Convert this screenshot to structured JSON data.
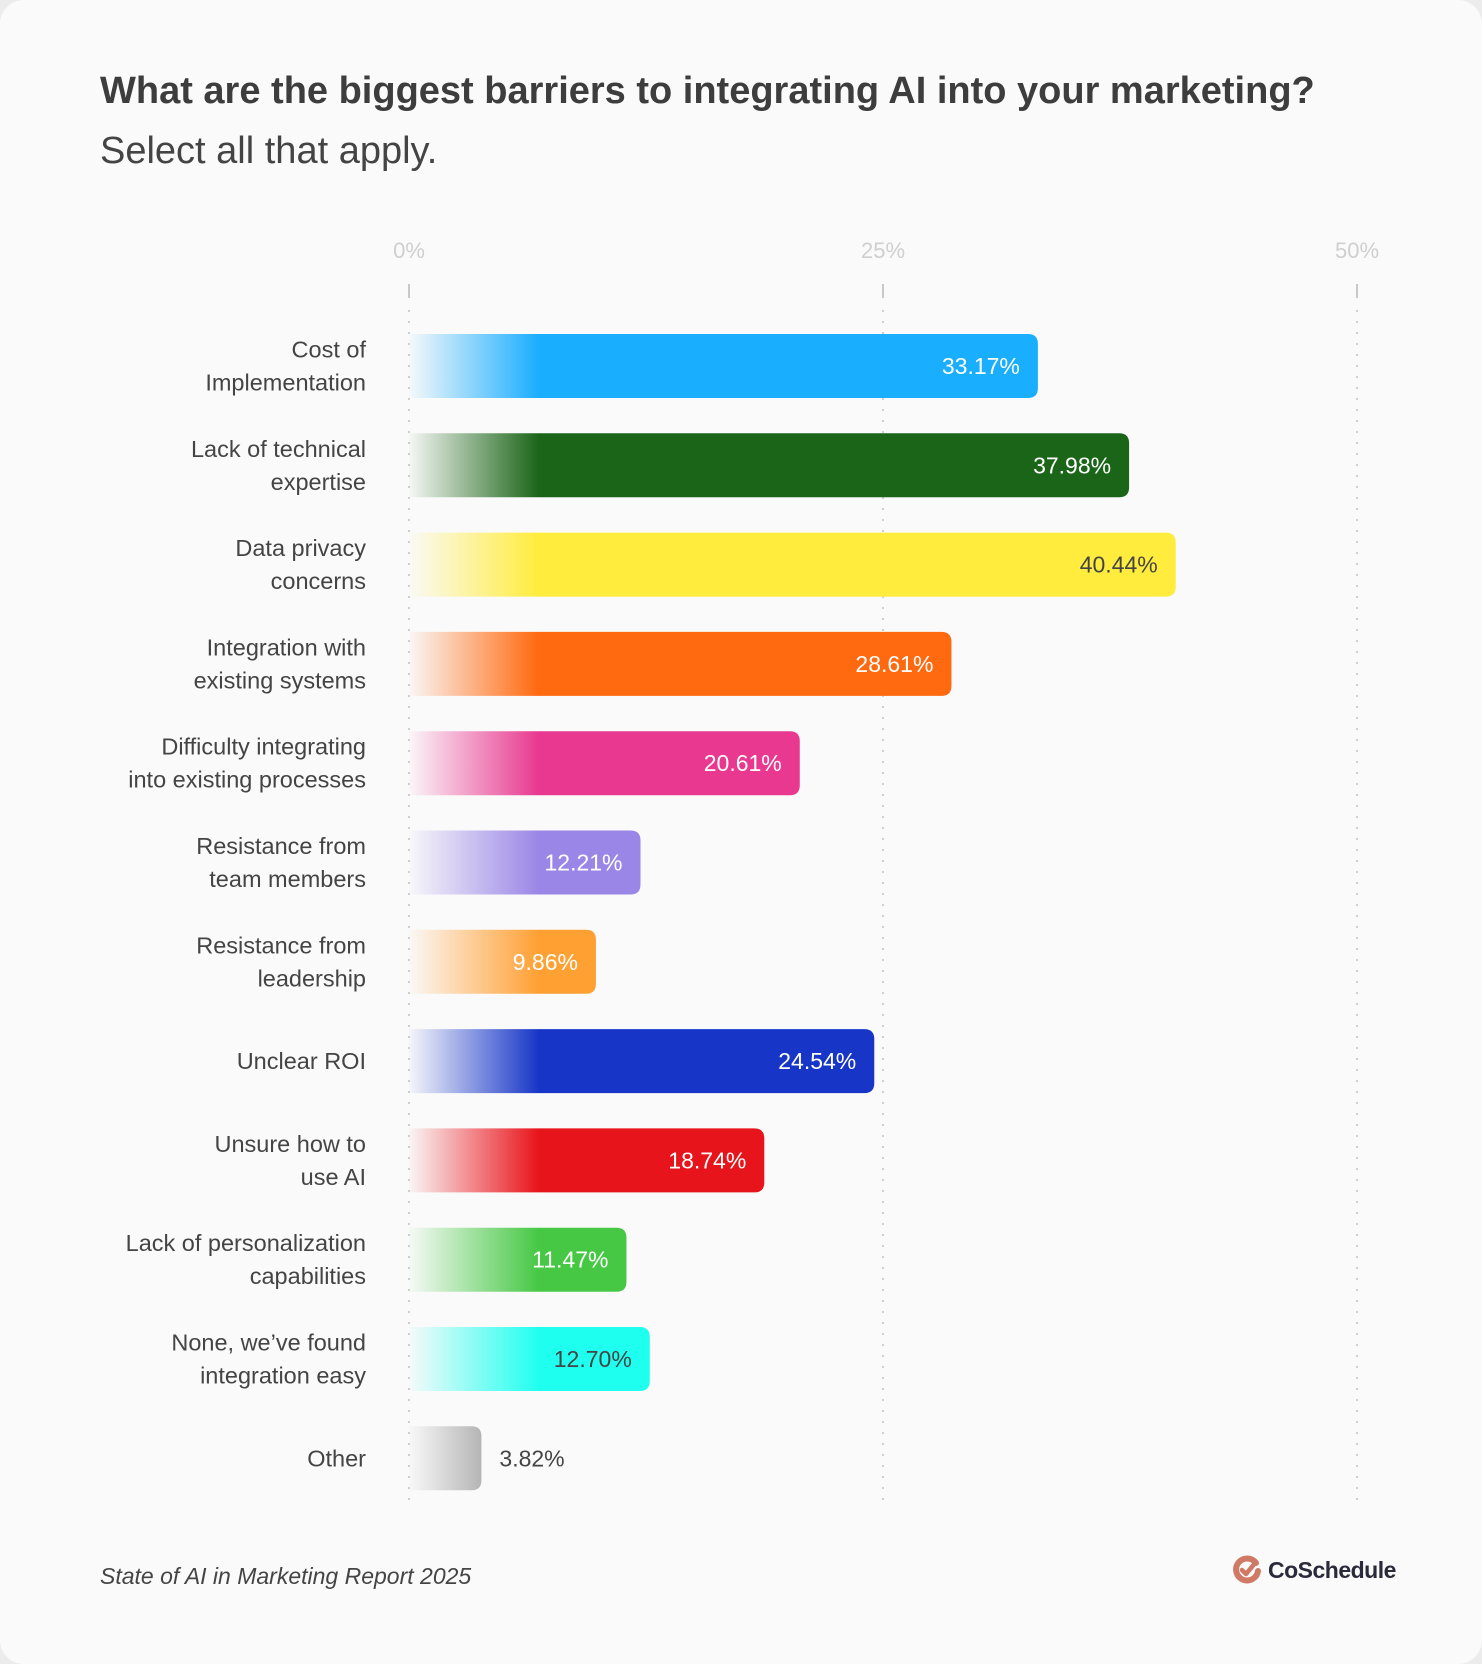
{
  "chart_data": {
    "type": "bar",
    "orientation": "horizontal",
    "title": "What are the biggest barriers to integrating AI into your marketing?",
    "subtitle": "Select all that apply.",
    "xlim": [
      0,
      50
    ],
    "x_ticks": [
      "0%",
      "25%",
      "50%"
    ],
    "x_tick_values": [
      0,
      25,
      50
    ],
    "grid": "vertical dotted",
    "categories": [
      [
        "Cost of",
        "Implementation"
      ],
      [
        "Lack of technical",
        "expertise"
      ],
      [
        "Data privacy",
        "concerns"
      ],
      [
        "Integration with",
        "existing systems"
      ],
      [
        "Difficulty integrating",
        "into existing processes"
      ],
      [
        "Resistance from",
        "team members"
      ],
      [
        "Resistance from",
        "leadership"
      ],
      [
        "Unclear ROI"
      ],
      [
        "Unsure how to",
        "use AI"
      ],
      [
        "Lack of personalization",
        "capabilities"
      ],
      [
        "None, we’ve found",
        "integration easy"
      ],
      [
        "Other"
      ]
    ],
    "values": [
      33.17,
      37.98,
      40.44,
      28.61,
      20.61,
      12.21,
      9.86,
      24.54,
      18.74,
      11.47,
      12.7,
      3.82
    ],
    "value_labels": [
      "33.17%",
      "37.98%",
      "40.44%",
      "28.61%",
      "20.61%",
      "12.21%",
      "9.86%",
      "24.54%",
      "18.74%",
      "11.47%",
      "12.70%",
      "3.82%"
    ],
    "colors": [
      "#1aaeff",
      "#1b6518",
      "#ffec3d",
      "#ff690f",
      "#e8388f",
      "#9a86e6",
      "#ffa033",
      "#1736c7",
      "#e8141b",
      "#46c844",
      "#1ffff0",
      "#b5b5b5"
    ],
    "label_colors": [
      "#ffffff",
      "#ffffff",
      "#444444",
      "#ffffff",
      "#ffffff",
      "#ffffff",
      "#ffffff",
      "#ffffff",
      "#ffffff",
      "#ffffff",
      "#444444",
      "#444444"
    ]
  },
  "footer": {
    "source": "State of AI in Marketing Report 2025"
  },
  "logo": {
    "text": "CoSchedule",
    "color": "#d07a66",
    "icon": "check-circle-icon"
  }
}
